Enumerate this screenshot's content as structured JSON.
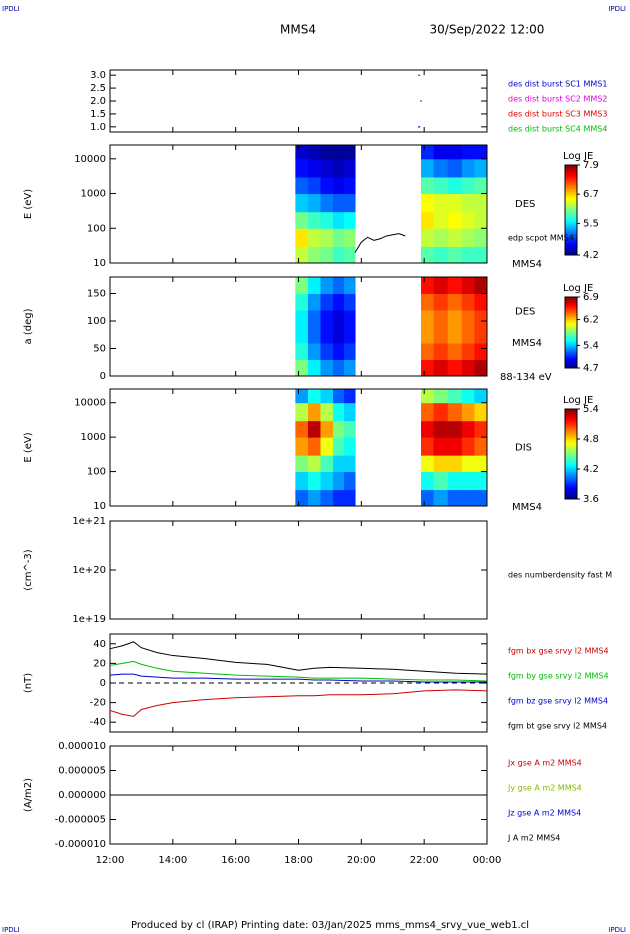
{
  "header": {
    "left_mark": "IPDLI",
    "right_mark": "IPDLI",
    "mission": "MMS4",
    "date": "30/Sep/2022 12:00"
  },
  "footer": {
    "credit": "Produced by cl (IRAP)   Printing date: 03/Jan/2025   mms_mms4_srvy_vue_web1.cl",
    "left_mark": "IPDLI",
    "right_mark": "IPDLI"
  },
  "time_axis": {
    "xlim": [
      12,
      24
    ],
    "xticks": [
      {
        "value": 12,
        "label": "12:00"
      },
      {
        "value": 14,
        "label": "14:00"
      },
      {
        "value": 16,
        "label": "16:00"
      },
      {
        "value": 18,
        "label": "18:00"
      },
      {
        "value": 20,
        "label": "20:00"
      },
      {
        "value": 22,
        "label": "22:00"
      },
      {
        "value": 24,
        "label": "00:00"
      }
    ]
  },
  "chart_data": [
    {
      "type": "scatter",
      "ylim": [
        0.8,
        3.2
      ],
      "yticks": [
        {
          "value": 1,
          "label": "1.0"
        },
        1.5,
        {
          "value": 2,
          "label": "2.0"
        },
        2.5,
        {
          "value": 3,
          "label": "3.0"
        }
      ],
      "series": [
        {
          "name": "des dist burst SC1 MMS1",
          "color": "#0000cc",
          "x": [
            21.84
          ],
          "values": [
            1
          ]
        },
        {
          "name": "des dist burst SC2 MMS2",
          "color": "#dd00dd",
          "x": [
            21.9
          ],
          "values": [
            2
          ]
        },
        {
          "name": "des dist burst SC3 MMS3",
          "color": "#dd0000",
          "x": [
            21.84
          ],
          "values": [
            3
          ]
        },
        {
          "name": "des dist burst SC4 MMS4",
          "color": "#00bb00",
          "x": [],
          "values": []
        }
      ]
    },
    {
      "type": "spectrogram",
      "ylabel": "E (eV)",
      "ylog": true,
      "ylim": [
        10,
        25000
      ],
      "yticks": [
        10,
        100,
        1000,
        10000
      ],
      "instrument": "DES",
      "spacecraft": "MMS4",
      "colorbar": {
        "label": "Log JE",
        "clim": [
          4.2,
          7.9
        ],
        "ticks": [
          4.2,
          5.5,
          6.7,
          7.9
        ]
      },
      "x_bins": [
        17.9,
        18.3,
        18.7,
        19.1,
        19.45,
        19.8,
        21.9,
        22.3,
        22.75,
        23.2,
        23.6,
        24
      ],
      "y_bins": [
        10,
        30,
        100,
        300,
        1000,
        3000,
        10000,
        25000
      ],
      "values": [
        [
          6.3,
          6.6,
          6.0,
          5.4,
          5.0,
          4.7,
          4.5
        ],
        [
          6.1,
          6.3,
          5.8,
          5.3,
          4.9,
          4.6,
          4.4
        ],
        [
          6.0,
          6.2,
          5.7,
          5.1,
          4.7,
          4.5,
          4.3
        ],
        [
          5.8,
          6.0,
          5.5,
          5.0,
          4.6,
          4.4,
          4.3
        ],
        [
          5.9,
          6.1,
          5.6,
          5.0,
          4.7,
          4.5,
          4.3
        ],
        [
          null,
          null,
          null,
          null,
          null,
          null,
          null
        ],
        [
          5.9,
          6.3,
          6.6,
          6.5,
          5.9,
          5.3,
          4.8
        ],
        [
          5.8,
          6.2,
          6.4,
          6.4,
          5.8,
          5.1,
          4.6
        ],
        [
          5.9,
          6.3,
          6.5,
          6.4,
          5.7,
          5.0,
          4.6
        ],
        [
          5.8,
          6.2,
          6.4,
          6.3,
          5.8,
          5.2,
          4.7
        ],
        [
          5.8,
          6.1,
          6.3,
          6.3,
          5.9,
          5.3,
          4.7
        ]
      ],
      "series": [
        {
          "name": "edp scpot MMS4",
          "color": "#000000",
          "x": [
            19.8,
            20.0,
            20.2,
            20.4,
            20.6,
            20.8,
            21.0,
            21.2,
            21.4
          ],
          "values": [
            20,
            40,
            55,
            45,
            50,
            60,
            65,
            70,
            60
          ]
        }
      ]
    },
    {
      "type": "spectrogram",
      "ylabel": "a (deg)",
      "ylog": false,
      "ylim": [
        0,
        180
      ],
      "yticks": [
        0,
        50,
        100,
        150
      ],
      "instrument": "DES",
      "spacecraft": "MMS4",
      "energy_range": "88-134 eV",
      "colorbar": {
        "label": "Log JE",
        "clim": [
          4.7,
          6.9
        ],
        "ticks": [
          4.7,
          5.4,
          6.2,
          6.9
        ]
      },
      "x_bins": [
        17.9,
        18.3,
        18.7,
        19.1,
        19.45,
        19.8,
        21.9,
        22.3,
        22.75,
        23.2,
        23.6,
        24
      ],
      "y_bins": [
        0,
        30,
        60,
        90,
        120,
        150,
        180
      ],
      "values": [
        [
          5.8,
          5.6,
          5.5,
          5.5,
          5.6,
          5.8
        ],
        [
          5.5,
          5.3,
          5.2,
          5.2,
          5.3,
          5.5
        ],
        [
          5.3,
          5.1,
          5.0,
          5.0,
          5.1,
          5.3
        ],
        [
          5.2,
          5.0,
          4.9,
          4.9,
          5.0,
          5.2
        ],
        [
          5.3,
          5.1,
          5.0,
          5.0,
          5.1,
          5.3
        ],
        [
          null,
          null,
          null,
          null,
          null,
          null
        ],
        [
          6.6,
          6.4,
          6.3,
          6.3,
          6.4,
          6.6
        ],
        [
          6.7,
          6.5,
          6.4,
          6.4,
          6.5,
          6.7
        ],
        [
          6.6,
          6.4,
          6.3,
          6.3,
          6.4,
          6.6
        ],
        [
          6.7,
          6.5,
          6.4,
          6.4,
          6.5,
          6.7
        ],
        [
          6.8,
          6.6,
          6.5,
          6.5,
          6.6,
          6.8
        ]
      ]
    },
    {
      "type": "spectrogram",
      "ylabel": "E (eV)",
      "ylog": true,
      "ylim": [
        10,
        25000
      ],
      "yticks": [
        10,
        100,
        1000,
        10000
      ],
      "instrument": "DIS",
      "spacecraft": "MMS4",
      "colorbar": {
        "label": "Log JE",
        "clim": [
          3.6,
          5.4
        ],
        "ticks": [
          3.6,
          4.2,
          4.8,
          5.4
        ]
      },
      "x_bins": [
        17.9,
        18.3,
        18.7,
        19.1,
        19.45,
        19.8,
        21.9,
        22.3,
        22.75,
        23.2,
        23.6,
        24
      ],
      "y_bins": [
        10,
        30,
        100,
        300,
        1000,
        3000,
        10000,
        25000
      ],
      "values": [
        [
          4.0,
          4.2,
          4.5,
          4.9,
          5.0,
          4.6,
          4.1
        ],
        [
          4.1,
          4.3,
          4.6,
          5.0,
          5.3,
          4.9,
          4.3
        ],
        [
          4.0,
          4.2,
          4.4,
          4.7,
          4.9,
          4.6,
          4.2
        ],
        [
          3.9,
          4.1,
          4.2,
          4.4,
          4.5,
          4.3,
          4.0
        ],
        [
          3.9,
          4.0,
          4.2,
          4.3,
          4.4,
          4.2,
          3.9
        ],
        [
          null,
          null,
          null,
          null,
          null,
          null,
          null
        ],
        [
          4.0,
          4.3,
          4.7,
          5.1,
          5.2,
          5.0,
          4.6
        ],
        [
          4.1,
          4.4,
          4.8,
          5.2,
          5.3,
          5.1,
          4.5
        ],
        [
          4.0,
          4.3,
          4.8,
          5.2,
          5.3,
          5.0,
          4.4
        ],
        [
          4.0,
          4.3,
          4.7,
          5.1,
          5.2,
          4.9,
          4.3
        ],
        [
          4.0,
          4.3,
          4.7,
          5.0,
          5.1,
          4.8,
          4.2
        ]
      ]
    },
    {
      "type": "line",
      "ylabel": "(cm^-3)",
      "ylog": true,
      "ylim": [
        1e+19,
        1e+21
      ],
      "yticks": [
        {
          "value": 1e+19,
          "label": "1e+19"
        },
        {
          "value": 1e+20,
          "label": "1e+20"
        },
        {
          "value": 1e+21,
          "label": "1e+21"
        }
      ],
      "series": [
        {
          "name": "des numberdensity fast M",
          "color": "#000000",
          "x": [],
          "values": []
        }
      ]
    },
    {
      "type": "line",
      "ylabel": "(nT)",
      "ylog": false,
      "ylim": [
        -50,
        50
      ],
      "yticks": [
        -40,
        -20,
        0,
        20,
        40
      ],
      "zero_line": true,
      "series": [
        {
          "name": "fgm bx gse srvy l2 MMS4",
          "color": "#cc0000",
          "x": [
            12,
            12.4,
            12.75,
            13,
            13.5,
            14,
            15,
            16,
            17,
            18,
            18.5,
            19,
            20,
            21,
            22,
            23,
            24
          ],
          "values": [
            -28,
            -32,
            -34,
            -27,
            -23,
            -20,
            -17,
            -15,
            -14,
            -13,
            -13,
            -12,
            -12,
            -11,
            -8,
            -7,
            -8
          ]
        },
        {
          "name": "fgm by gse srvy l2 MMS4",
          "color": "#00bb00",
          "x": [
            12,
            12.4,
            12.75,
            13,
            13.5,
            14,
            15,
            16,
            17,
            18,
            18.5,
            19,
            20,
            21,
            22,
            23,
            24
          ],
          "values": [
            18,
            20,
            22,
            19,
            15,
            12,
            10,
            8,
            7,
            6,
            5,
            5,
            5,
            4,
            3,
            3,
            2
          ]
        },
        {
          "name": "fgm bz gse srvy l2 MMS4",
          "color": "#0000cc",
          "x": [
            12,
            12.4,
            12.75,
            13,
            13.5,
            14,
            15,
            16,
            17,
            18,
            18.5,
            19,
            20,
            21,
            22,
            23,
            24
          ],
          "values": [
            8,
            9,
            9,
            7,
            6,
            5,
            5,
            4,
            4,
            4,
            3,
            3,
            2,
            2,
            1,
            1,
            1
          ]
        },
        {
          "name": "fgm bt gse srvy l2 MMS4",
          "color": "#000000",
          "x": [
            12,
            12.4,
            12.75,
            13,
            13.5,
            14,
            15,
            16,
            17,
            18,
            18.5,
            19,
            20,
            21,
            22,
            23,
            24
          ],
          "values": [
            35,
            38,
            42,
            36,
            31,
            28,
            25,
            21,
            19,
            13,
            15,
            16,
            15,
            14,
            12,
            10,
            9
          ]
        }
      ]
    },
    {
      "type": "line",
      "ylabel": "(A/m2)",
      "ylog": false,
      "ylim": [
        -1e-05,
        1e-05
      ],
      "yticks": [
        {
          "value": -1e-05,
          "label": "-0.000010"
        },
        {
          "value": -5e-06,
          "label": "-0.000005"
        },
        {
          "value": 0,
          "label": "0.000000"
        },
        {
          "value": 5e-06,
          "label": "0.000005"
        },
        {
          "value": 1e-05,
          "label": "0.000010"
        }
      ],
      "series": [
        {
          "name": "Jx gse A m2 MMS4",
          "color": "#cc0000",
          "x": [
            12,
            24
          ],
          "values": [
            0,
            0
          ]
        },
        {
          "name": "Jy gse A m2 MMS4",
          "color": "#88bb00",
          "x": [
            12,
            24
          ],
          "values": [
            0,
            0
          ]
        },
        {
          "name": "Jz gse A m2 MMS4",
          "color": "#0000cc",
          "x": [
            12,
            24
          ],
          "values": [
            0,
            0
          ]
        },
        {
          "name": "J A m2 MMS4",
          "color": "#000000",
          "x": [
            12,
            24
          ],
          "values": [
            0,
            0
          ]
        }
      ]
    }
  ]
}
